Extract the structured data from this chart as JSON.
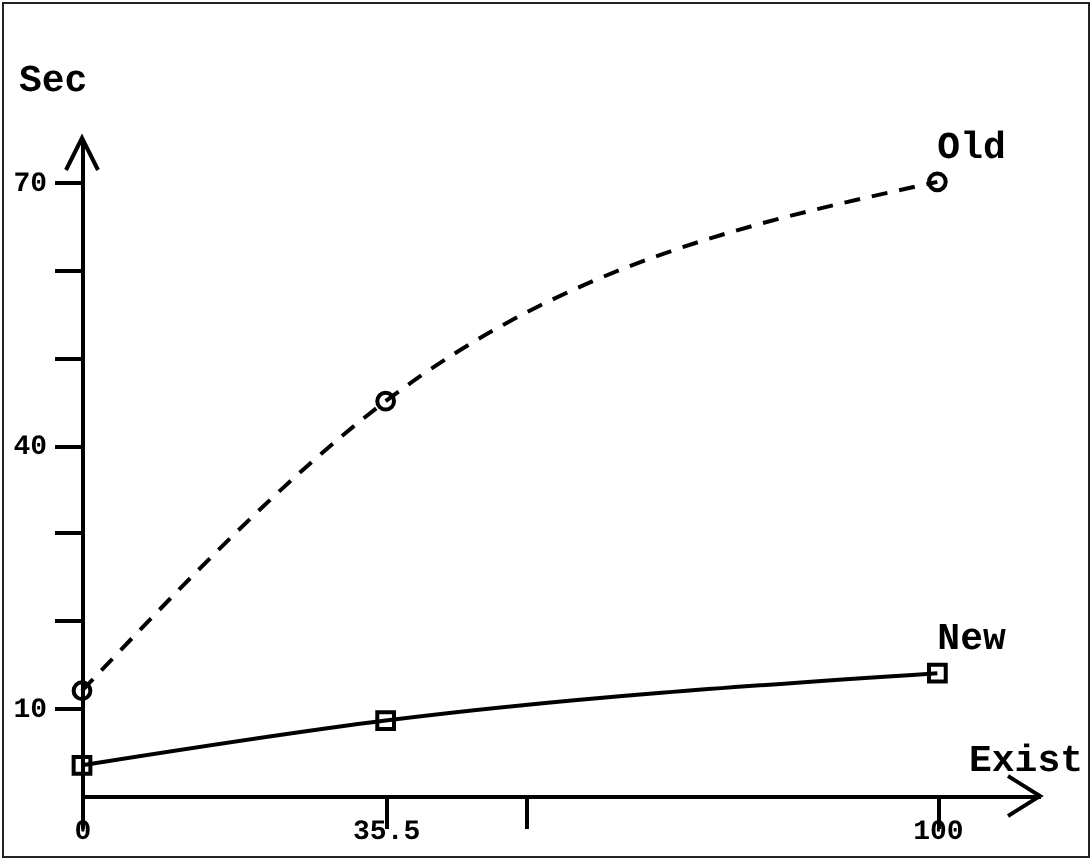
{
  "chart_data": {
    "type": "line",
    "xlabel": "Exist",
    "ylabel": "Sec",
    "x": [
      0,
      35.5,
      100
    ],
    "series": [
      {
        "name": "Old",
        "color": "#000000",
        "values": [
          12,
          45,
          70
        ],
        "marker": "circle",
        "line_style": "dashed"
      },
      {
        "name": "New",
        "color": "#000000",
        "values": [
          3.5,
          8.6,
          14
        ],
        "marker": "square",
        "line_style": "solid"
      }
    ],
    "xlim": [
      0,
      112
    ],
    "ylim": [
      0,
      75
    ],
    "xticks": [
      0,
      35.5,
      {
        "value": 52,
        "label": null
      },
      100
    ],
    "yticks": [
      10,
      {
        "value": 20,
        "label": null
      },
      {
        "value": 30,
        "label": null
      },
      40,
      {
        "value": 50,
        "label": null
      },
      {
        "value": 60,
        "label": null
      },
      70
    ]
  }
}
